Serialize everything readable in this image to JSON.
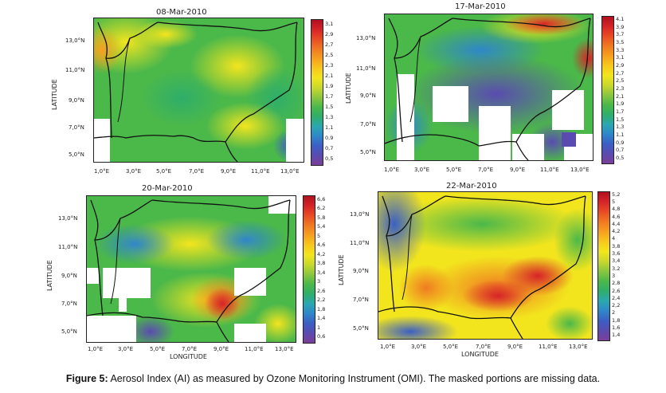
{
  "caption": {
    "label": "Figure 5:",
    "text": " Aerosol Index (AI) as measured by Ozone Monitoring Instrument (OMI). The masked portions are missing data."
  },
  "colors": {
    "ramp": [
      "#7b3f9a",
      "#5a4bb0",
      "#3b5fc4",
      "#2f86c9",
      "#2aa8b0",
      "#2fae6a",
      "#4bb84a",
      "#8cc63f",
      "#c9d82c",
      "#f2e51e",
      "#f7c81e",
      "#f6a01f",
      "#f07a22",
      "#e84c25",
      "#d62428",
      "#b01020"
    ],
    "masked": "#ffffff",
    "boundary": "#111111"
  },
  "panels": [
    {
      "title": "08-Mar-2010",
      "ylabels": [
        "13,0°N",
        "11,0°N",
        "9,0°N",
        "7,0°N",
        "5,0°N"
      ],
      "xlabels": [
        "1,0°E",
        "3,0°E",
        "5,0°E",
        "7,0°E",
        "9,0°E",
        "11,0°E",
        "13,0°E"
      ],
      "ylabel": "LATITUDE",
      "xlabel": "",
      "colorbar": [
        "3,1",
        "2,9",
        "2,7",
        "2,5",
        "2,3",
        "2,1",
        "1,9",
        "1,7",
        "1,5",
        "1,3",
        "1,1",
        "0,9",
        "0,7",
        "0,5"
      ]
    },
    {
      "title": "17-Mar-2010",
      "ylabels": [
        "13,0°N",
        "11,0°N",
        "9,0°N",
        "7,0°N",
        "5,0°N"
      ],
      "xlabels": [
        "1,0°E",
        "3,0°E",
        "5,0°E",
        "7,0°E",
        "9,0°E",
        "11,0°E",
        "13,0°E"
      ],
      "ylabel": "LATITUDE",
      "xlabel": "",
      "colorbar": [
        "4,1",
        "3,9",
        "3,7",
        "3,5",
        "3,3",
        "3,1",
        "2,9",
        "2,7",
        "2,5",
        "2,3",
        "2,1",
        "1,9",
        "1,7",
        "1,5",
        "1,3",
        "1,1",
        "0,9",
        "0,7",
        "0,5"
      ]
    },
    {
      "title": "20-Mar-2010",
      "ylabels": [
        "13,0°N",
        "11,0°N",
        "9,0°N",
        "7,0°N",
        "5,0°N"
      ],
      "xlabels": [
        "1,0°E",
        "3,0°E",
        "5,0°E",
        "7,0°E",
        "9,0°E",
        "11,0°E",
        "13,0°E"
      ],
      "ylabel": "LATITUDE",
      "xlabel": "LONGITUDE",
      "colorbar": [
        "6,6",
        "6,2",
        "5,8",
        "5,4",
        "5",
        "4,6",
        "4,2",
        "3,8",
        "3,4",
        "3",
        "2,6",
        "2,2",
        "1,8",
        "1,4",
        "1",
        "0,6"
      ]
    },
    {
      "title": "22-Mar-2010",
      "ylabels": [
        "13,0°N",
        "11,0°N",
        "9,0°N",
        "7,0°N",
        "5,0°N"
      ],
      "xlabels": [
        "1,0°E",
        "3,0°E",
        "5,0°E",
        "7,0°E",
        "9,0°E",
        "11,0°E",
        "13,0°E"
      ],
      "ylabel": "LATITUDE",
      "xlabel": "LONGITUDE",
      "colorbar": [
        "5,2",
        "5",
        "4,8",
        "4,6",
        "4,4",
        "4,2",
        "4",
        "3,8",
        "3,6",
        "3,4",
        "3,2",
        "3",
        "2,8",
        "2,6",
        "2,4",
        "2,2",
        "2",
        "1,8",
        "1,6",
        "1,4"
      ]
    }
  ]
}
